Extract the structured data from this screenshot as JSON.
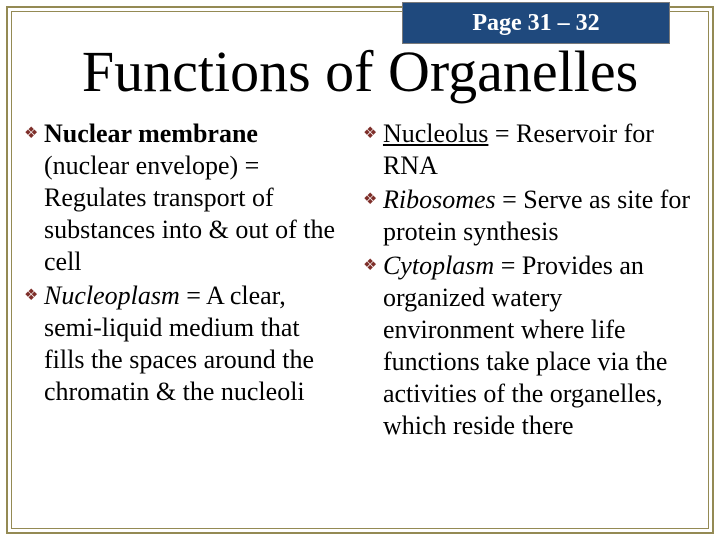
{
  "page_tab": "Page 31 – 32",
  "title": "Functions of Organelles",
  "bullet_color": "#7e2f2a",
  "tab_bg": "#1f497d",
  "border_color": "#948a54",
  "left": [
    {
      "term": "Nuclear membrane",
      "term_style": "bold",
      "aside": " (nuclear envelope)",
      "def": " = Regulates transport of substances into & out of the cell"
    },
    {
      "term": "Nucleoplasm",
      "term_style": "italic",
      "aside": "",
      "def": " = A clear, semi-liquid medium that fills the spaces around the chromatin & the nucleoli"
    }
  ],
  "right": [
    {
      "term": "Nucleolus",
      "term_style": "underline",
      "aside": "",
      "def": " = Reservoir for RNA"
    },
    {
      "term": "Ribosomes",
      "term_style": "italic",
      "aside": "",
      "def": " = Serve as site for protein synthesis"
    },
    {
      "term": "Cytoplasm",
      "term_style": "italic",
      "aside": "",
      "def": " = Provides an organized watery environment where life functions take place via the activities of the organelles, which reside there"
    }
  ]
}
